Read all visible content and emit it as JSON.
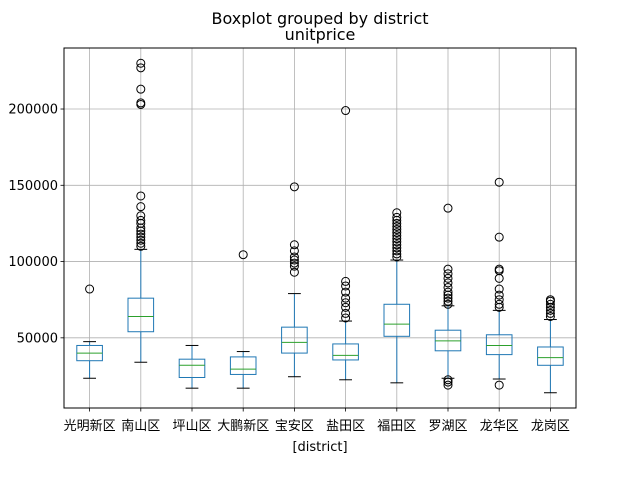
{
  "chart_data": {
    "type": "boxplot",
    "suptitle": "Boxplot grouped by district",
    "title": "unitprice",
    "xlabel": "[district]",
    "ylabel": "",
    "ylim": [
      4000,
      240000
    ],
    "yticks": [
      50000,
      100000,
      150000,
      200000
    ],
    "ytick_labels": [
      "50000",
      "100000",
      "150000",
      "200000"
    ],
    "grid": true,
    "colors": {
      "box": "#1f77b4",
      "median": "#2ca02c",
      "grid": "#b0b0b0",
      "outlier": "#000000"
    },
    "categories": [
      "光明新区",
      "南山区",
      "坪山区",
      "大鹏新区",
      "宝安区",
      "盐田区",
      "福田区",
      "罗湖区",
      "龙华区",
      "龙岗区"
    ],
    "boxes": [
      {
        "name": "光明新区",
        "whislo": 23500,
        "q1": 35000,
        "med": 40000,
        "q3": 45000,
        "whishi": 47500,
        "fliers": [
          82000
        ]
      },
      {
        "name": "南山区",
        "whislo": 34000,
        "q1": 54000,
        "med": 64000,
        "q3": 76000,
        "whishi": 108000,
        "fliers": [
          110000,
          112000,
          114000,
          116000,
          118000,
          120000,
          122000,
          125000,
          127000,
          130000,
          136000,
          143000,
          203000,
          204000,
          213000,
          227000,
          230000
        ]
      },
      {
        "name": "坪山区",
        "whislo": 17000,
        "q1": 24000,
        "med": 32000,
        "q3": 36000,
        "whishi": 45000,
        "fliers": []
      },
      {
        "name": "大鹏新区",
        "whislo": 17000,
        "q1": 26000,
        "med": 29500,
        "q3": 37500,
        "whishi": 41000,
        "fliers": [
          104500
        ]
      },
      {
        "name": "宝安区",
        "whislo": 24500,
        "q1": 40000,
        "med": 47000,
        "q3": 57000,
        "whishi": 79000,
        "fliers": [
          93000,
          97000,
          99000,
          101000,
          103000,
          107000,
          111000,
          149000
        ]
      },
      {
        "name": "盐田区",
        "whislo": 22500,
        "q1": 35500,
        "med": 38500,
        "q3": 46000,
        "whishi": 61000,
        "fliers": [
          63000,
          66000,
          70000,
          73000,
          76000,
          80000,
          84000,
          87000,
          199000
        ]
      },
      {
        "name": "福田区",
        "whislo": 20500,
        "q1": 51000,
        "med": 59000,
        "q3": 72000,
        "whishi": 101000,
        "fliers": [
          103000,
          105000,
          107000,
          109000,
          111000,
          113000,
          115000,
          117000,
          119000,
          121000,
          123000,
          125000,
          127000,
          129000,
          132000
        ]
      },
      {
        "name": "罗湖区",
        "whislo": 23500,
        "q1": 41500,
        "med": 48000,
        "q3": 55000,
        "whishi": 71000,
        "fliers": [
          19000,
          21000,
          22500,
          72000,
          74000,
          76000,
          78000,
          80000,
          83000,
          86000,
          89000,
          92000,
          95000,
          135000
        ]
      },
      {
        "name": "龙华区",
        "whislo": 23000,
        "q1": 39000,
        "med": 45000,
        "q3": 52000,
        "whishi": 68000,
        "fliers": [
          19000,
          70000,
          72000,
          75000,
          78000,
          82000,
          89000,
          94000,
          95000,
          116000,
          152000
        ]
      },
      {
        "name": "龙岗区",
        "whislo": 14000,
        "q1": 32000,
        "med": 37000,
        "q3": 44000,
        "whishi": 62000,
        "fliers": [
          64000,
          66000,
          68000,
          70000,
          72000,
          74000,
          75000
        ]
      }
    ]
  }
}
